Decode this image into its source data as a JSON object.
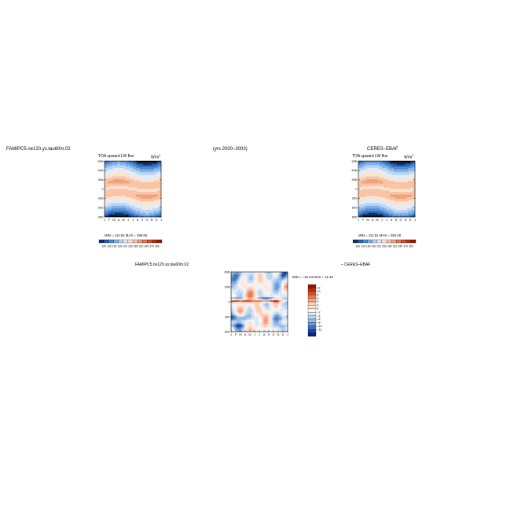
{
  "header": {
    "left_title": "FAMIPC5.ne120.ys.tau60m.02",
    "center_title": "(yrs 2000–2003)",
    "right_title": "CERES–EBAF",
    "diff_title_left": "FAMIPC5.ne120.ys.tau60m.02",
    "diff_title_right": "– CERES–EBAF"
  },
  "panels": {
    "model": {
      "label": "TOA upward LW flux",
      "units": "W/m",
      "units_sup": "2",
      "stats": "MIN = 112.62  MAX = 285.66"
    },
    "obs": {
      "label": "TOA upward LW flux",
      "units": "W/m",
      "units_sup": "2",
      "stats": "MIN = 112.51  MAX = 284.50"
    },
    "diff": {
      "stats": "MIN = –15.44  MAX =  11.33"
    }
  },
  "axes": {
    "months": [
      "J",
      "F",
      "M",
      "A",
      "M",
      "J",
      "J",
      "A",
      "S",
      "O",
      "N",
      "D",
      "J"
    ],
    "lat_ticks_full": [
      "90N",
      "60N",
      "30N",
      "0",
      "30S",
      "60S",
      "90S"
    ],
    "lat_ticks_diff": [
      "60N",
      "30N",
      "0",
      "30S",
      "60S"
    ]
  },
  "colorbars": {
    "full_labels": [
      "100",
      "130",
      "160",
      "190",
      "220",
      "250",
      "280",
      "310",
      "340",
      "370",
      "390"
    ],
    "diff_labels": [
      "12",
      "10",
      "8",
      "6",
      "4",
      "2",
      "0",
      "–2",
      "–4",
      "–6",
      "–8",
      "–10",
      "–12"
    ]
  },
  "colors": {
    "full_scale": [
      "#08306b",
      "#2361b0",
      "#4a89d6",
      "#7fb0e6",
      "#b8d4f2",
      "#e1ecf8",
      "#fbe3d2",
      "#f7c3a3",
      "#f0a07b",
      "#e4764f",
      "#d24f2b",
      "#b1310f",
      "#8a1e06"
    ],
    "diff_scale": [
      "#8c1d04",
      "#b53010",
      "#d44e2a",
      "#eb7952",
      "#f6a482",
      "#fbcdb5",
      "#fde9dc",
      "#f4f4f4",
      "#dde8f6",
      "#bdd5f0",
      "#94bbe6",
      "#6a99d8",
      "#3f6fc3",
      "#1d46a4",
      "#0a2474"
    ]
  },
  "chart_data": [
    {
      "type": "heatmap",
      "name": "model",
      "x": [
        "J",
        "F",
        "M",
        "A",
        "M",
        "J",
        "J",
        "A",
        "S",
        "O",
        "N",
        "D",
        "J"
      ],
      "y": [
        "90N",
        "60N",
        "30N",
        "0",
        "30S",
        "60S",
        "90S"
      ],
      "zlim": [
        100,
        390
      ],
      "min": 112.62,
      "max": 285.66
    },
    {
      "type": "heatmap",
      "name": "obs",
      "x": [
        "J",
        "F",
        "M",
        "A",
        "M",
        "J",
        "J",
        "A",
        "S",
        "O",
        "N",
        "D",
        "J"
      ],
      "y": [
        "90N",
        "60N",
        "30N",
        "0",
        "30S",
        "60S",
        "90S"
      ],
      "zlim": [
        100,
        390
      ],
      "min": 112.51,
      "max": 284.5
    },
    {
      "type": "heatmap",
      "name": "diff",
      "x": [
        "J",
        "F",
        "M",
        "A",
        "M",
        "J",
        "J",
        "A",
        "S",
        "O",
        "N",
        "D",
        "J"
      ],
      "y": [
        "60N",
        "30N",
        "0",
        "30S",
        "60S"
      ],
      "zlim": [
        -12,
        12
      ],
      "min": -15.44,
      "max": 11.33
    }
  ]
}
